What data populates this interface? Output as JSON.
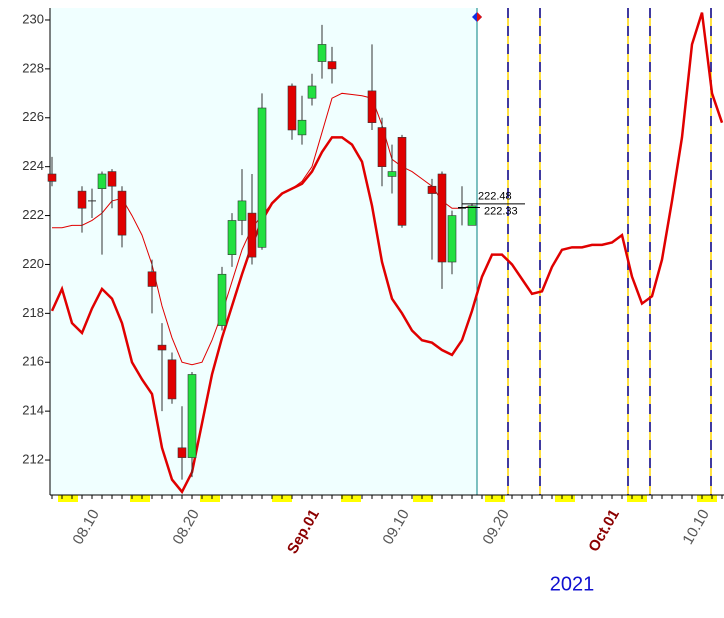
{
  "chart_data": {
    "type": "candlestick",
    "year_label": "2021",
    "categories": [
      null,
      null,
      null,
      null,
      "08.10",
      null,
      null,
      null,
      null,
      null,
      null,
      null,
      null,
      null,
      "08.20",
      null,
      null,
      null,
      null,
      null,
      null,
      null,
      null,
      null,
      null,
      null,
      "Sep.01",
      null,
      null,
      null,
      null,
      null,
      null,
      null,
      null,
      "09.10",
      null,
      null,
      null,
      null,
      null,
      null,
      null,
      null,
      null,
      "09.20",
      null,
      null,
      null,
      null,
      null,
      null,
      null,
      null,
      null,
      null,
      "Oct.01",
      null,
      null,
      null,
      null,
      null,
      null,
      null,
      null,
      "10.10",
      null,
      null
    ],
    "open": [
      223.7,
      null,
      null,
      223.0,
      222.6,
      223.1,
      223.8,
      223.0,
      null,
      null,
      219.7,
      216.7,
      216.1,
      212.5,
      212.1,
      null,
      null,
      217.5,
      220.4,
      221.8,
      222.1,
      220.7,
      null,
      null,
      227.3,
      225.3,
      226.8,
      228.3,
      228.3,
      null,
      null,
      null,
      227.1,
      225.6,
      223.6,
      225.2,
      null,
      null,
      223.2,
      223.7,
      220.1,
      222.3,
      221.6,
      null,
      null,
      null,
      null,
      null,
      null,
      null,
      null,
      null,
      null,
      null,
      null,
      null,
      null,
      null,
      null,
      null,
      null,
      null,
      null,
      null,
      null,
      null,
      null,
      null
    ],
    "high": [
      224.4,
      null,
      null,
      223.2,
      223.1,
      223.8,
      223.9,
      223.2,
      null,
      null,
      220.2,
      217.6,
      216.4,
      214.2,
      215.6,
      null,
      null,
      219.9,
      222.1,
      223.9,
      223.7,
      227.0,
      null,
      null,
      227.4,
      226.9,
      227.8,
      229.8,
      228.9,
      null,
      null,
      null,
      229.0,
      226.0,
      224.9,
      225.3,
      null,
      null,
      223.5,
      223.8,
      222.2,
      223.2,
      222.5,
      null,
      null,
      null,
      null,
      null,
      null,
      null,
      null,
      null,
      null,
      null,
      null,
      null,
      null,
      null,
      null,
      null,
      null,
      null,
      null,
      null,
      null,
      null,
      null,
      null
    ],
    "low": [
      223.2,
      null,
      null,
      221.3,
      221.9,
      220.4,
      222.3,
      220.7,
      null,
      null,
      218.0,
      214.0,
      214.3,
      211.2,
      211.3,
      null,
      null,
      217.3,
      219.9,
      221.2,
      220.0,
      220.6,
      null,
      null,
      225.1,
      224.9,
      226.5,
      227.6,
      227.4,
      null,
      null,
      null,
      225.5,
      223.2,
      222.9,
      221.5,
      null,
      null,
      220.2,
      219.0,
      219.6,
      221.6,
      221.6,
      null,
      null,
      null,
      null,
      null,
      null,
      null,
      null,
      null,
      null,
      null,
      null,
      null,
      null,
      null,
      null,
      null,
      null,
      null,
      null,
      null,
      null,
      null,
      null,
      null
    ],
    "close": [
      223.4,
      null,
      null,
      222.3,
      222.6,
      223.7,
      223.2,
      221.2,
      null,
      null,
      219.1,
      216.5,
      214.5,
      212.1,
      215.5,
      null,
      null,
      219.6,
      221.8,
      222.6,
      220.3,
      226.4,
      null,
      null,
      225.5,
      225.9,
      227.3,
      229.0,
      228.0,
      null,
      null,
      null,
      225.8,
      224.0,
      223.8,
      221.6,
      null,
      null,
      222.9,
      220.1,
      222.0,
      222.3,
      222.4,
      null,
      null,
      null,
      null,
      null,
      null,
      null,
      null,
      null,
      null,
      null,
      null,
      null,
      null,
      null,
      null,
      null,
      null,
      null,
      null,
      null,
      null,
      null,
      null,
      null
    ],
    "up_color": "#22e040",
    "down_color": "#e00000",
    "overlays": [
      {
        "color": "#e00000",
        "values": [
          221.5,
          221.5,
          221.6,
          221.6,
          221.8,
          222.1,
          222.6,
          222.7,
          222.0,
          221.2,
          220.0,
          218.3,
          217.0,
          216.0,
          215.9,
          216.0,
          216.9,
          218.0,
          219.3,
          220.6,
          221.5,
          222.0,
          222.5,
          222.9,
          223.1,
          223.4,
          224.0,
          225.4,
          226.8,
          227.0,
          226.95,
          226.9,
          226.8,
          225.7,
          224.3,
          224.0,
          223.8,
          223.5,
          223.2,
          222.6,
          222.3,
          222.3,
          222.4,
          null,
          null,
          null,
          null,
          null,
          null,
          null,
          null,
          null,
          null,
          null,
          null,
          null,
          null,
          null,
          null,
          null,
          null,
          null,
          null,
          null,
          null,
          null,
          null,
          null
        ]
      },
      {
        "color": "#e00000",
        "values": [
          218.1,
          219.0,
          217.6,
          217.2,
          218.2,
          219.0,
          218.6,
          217.6,
          216.0,
          215.3,
          214.7,
          212.5,
          211.2,
          210.7,
          211.5,
          213.5,
          215.5,
          217.0,
          218.3,
          219.6,
          220.8,
          221.8,
          222.5,
          222.9,
          223.1,
          223.3,
          223.8,
          224.6,
          225.2,
          225.2,
          224.9,
          224.2,
          222.4,
          220.1,
          218.6,
          218.0,
          217.3,
          216.9,
          216.8,
          216.5,
          216.3,
          216.9,
          218.1,
          219.5,
          220.4,
          220.4,
          220.0,
          219.4,
          218.8,
          218.9,
          219.9,
          220.6,
          220.7,
          220.7,
          220.8,
          220.8,
          220.9,
          221.2,
          219.5,
          218.4,
          218.7,
          220.2,
          222.6,
          225.2,
          229.0,
          230.3,
          227.0,
          225.8
        ]
      }
    ],
    "annotations": [
      {
        "value": 222.48,
        "label": "222.48"
      },
      {
        "value": 222.33,
        "label": "222.33"
      }
    ],
    "ylim": [
      210.57,
      230.49
    ],
    "yticks": [
      212,
      214,
      216,
      218,
      220,
      222,
      224,
      226,
      228,
      230
    ]
  }
}
